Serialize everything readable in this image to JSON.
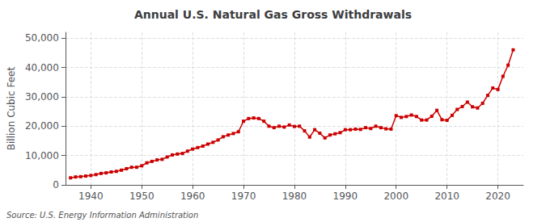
{
  "chart_data": {
    "type": "line",
    "title": "Annual U.S. Natural Gas Gross Withdrawals",
    "ylabel": "Billion Cubic Feet",
    "source": "Source: U.S. Energy Information Administration",
    "color": "#cc0000",
    "marker": "square",
    "grid": true,
    "xlim": [
      1935,
      2025
    ],
    "xticks": [
      1940,
      1950,
      1960,
      1970,
      1980,
      1990,
      2000,
      2010,
      2020
    ],
    "ylim": [
      0,
      52000
    ],
    "yticks": [
      0,
      {
        "value": 10000,
        "label": "10,000"
      },
      {
        "value": 20000,
        "label": "20,000"
      },
      {
        "value": 30000,
        "label": "30,000"
      },
      {
        "value": 40000,
        "label": "40,000"
      },
      {
        "value": 50000,
        "label": "50,000"
      }
    ],
    "x": [
      1936,
      1937,
      1938,
      1939,
      1940,
      1941,
      1942,
      1943,
      1944,
      1945,
      1946,
      1947,
      1948,
      1949,
      1950,
      1951,
      1952,
      1953,
      1954,
      1955,
      1956,
      1957,
      1958,
      1959,
      1960,
      1961,
      1962,
      1963,
      1964,
      1965,
      1966,
      1967,
      1968,
      1969,
      1970,
      1971,
      1972,
      1973,
      1974,
      1975,
      1976,
      1977,
      1978,
      1979,
      1980,
      1981,
      1982,
      1983,
      1984,
      1985,
      1986,
      1987,
      1988,
      1989,
      1990,
      1991,
      1992,
      1993,
      1994,
      1995,
      1996,
      1997,
      1998,
      1999,
      2000,
      2001,
      2002,
      2003,
      2004,
      2005,
      2006,
      2007,
      2008,
      2009,
      2010,
      2011,
      2012,
      2013,
      2014,
      2015,
      2016,
      2017,
      2018,
      2019,
      2020,
      2021,
      2022,
      2023
    ],
    "values": [
      2400,
      2700,
      2800,
      3000,
      3200,
      3500,
      3900,
      4100,
      4400,
      4600,
      5000,
      5500,
      6000,
      6000,
      6500,
      7500,
      8000,
      8500,
      8700,
      9500,
      10200,
      10500,
      10700,
      11500,
      12200,
      12700,
      13200,
      13900,
      14500,
      15300,
      16400,
      17000,
      17500,
      18100,
      21700,
      22600,
      22800,
      22600,
      21700,
      20000,
      19500,
      20000,
      19700,
      20400,
      19900,
      20000,
      18400,
      16300,
      18800,
      17600,
      16000,
      17000,
      17400,
      17800,
      18800,
      18800,
      19000,
      18900,
      19500,
      19200,
      20000,
      19500,
      19100,
      19000,
      23600,
      23000,
      23300,
      23800,
      23300,
      22100,
      22100,
      23400,
      25400,
      22200,
      22000,
      23700,
      25700,
      26700,
      28200,
      26600,
      26200,
      27800,
      30500,
      33000,
      32500,
      37000,
      40800,
      46000
    ]
  }
}
